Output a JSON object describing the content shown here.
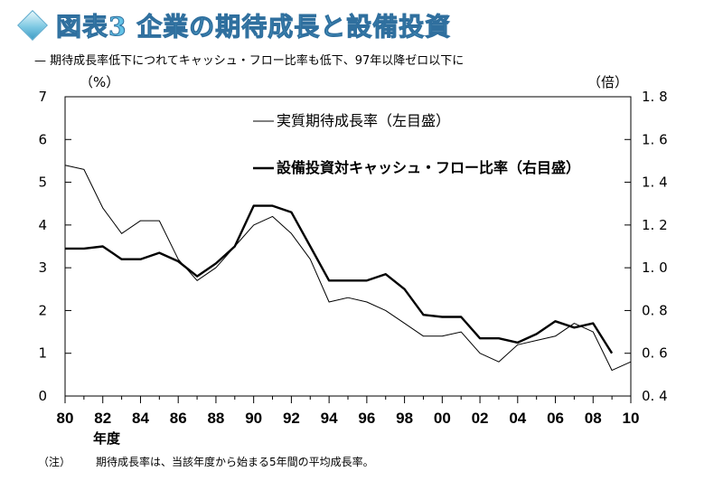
{
  "page": {
    "title": "図表3 企業の期待成長と設備投資",
    "subtitle": "—  期待成長率低下につれてキャッシュ・フロー比率も低下、97年以降ゼロ以下に",
    "note_label": "（注）",
    "note_text": "期待成長率は、当該年度から始まる5年間の平均成長率。",
    "icon": "diamond-icon"
  },
  "chart_data": {
    "type": "line",
    "xlabel": "年度",
    "ylabel_left": "（%）",
    "ylabel_right": "（倍）",
    "x_ticks": [
      {
        "value": 1980,
        "label": "80"
      },
      {
        "value": 1982,
        "label": "82"
      },
      {
        "value": 1984,
        "label": "84"
      },
      {
        "value": 1986,
        "label": "86"
      },
      {
        "value": 1988,
        "label": "88"
      },
      {
        "value": 1990,
        "label": "90"
      },
      {
        "value": 1992,
        "label": "92"
      },
      {
        "value": 1994,
        "label": "94"
      },
      {
        "value": 1996,
        "label": "96"
      },
      {
        "value": 1998,
        "label": "98"
      },
      {
        "value": 2000,
        "label": "00"
      },
      {
        "value": 2002,
        "label": "02"
      },
      {
        "value": 2004,
        "label": "04"
      },
      {
        "value": 2006,
        "label": "06"
      },
      {
        "value": 2008,
        "label": "08"
      },
      {
        "value": 2010,
        "label": "10"
      }
    ],
    "xlim": [
      1980,
      2010
    ],
    "y_left": {
      "min": 0,
      "max": 7,
      "ticks": [
        {
          "value": 0,
          "label": "0"
        },
        {
          "value": 1,
          "label": "1"
        },
        {
          "value": 2,
          "label": "2"
        },
        {
          "value": 3,
          "label": "3"
        },
        {
          "value": 4,
          "label": "4"
        },
        {
          "value": 5,
          "label": "5"
        },
        {
          "value": 6,
          "label": "6"
        },
        {
          "value": 7,
          "label": "7"
        }
      ]
    },
    "y_right": {
      "min": 0.4,
      "max": 1.8,
      "ticks": [
        {
          "value": 0.4,
          "label": "0. 4"
        },
        {
          "value": 0.6,
          "label": "0. 6"
        },
        {
          "value": 0.8,
          "label": "0. 8"
        },
        {
          "value": 1.0,
          "label": "1. 0"
        },
        {
          "value": 1.2,
          "label": "1. 2"
        },
        {
          "value": 1.4,
          "label": "1. 4"
        },
        {
          "value": 1.6,
          "label": "1. 6"
        },
        {
          "value": 1.8,
          "label": "1. 8"
        }
      ]
    },
    "grid": false,
    "legend_position": "top-center",
    "series": [
      {
        "name": "実質期待成長率（左目盛）",
        "axis": "left",
        "stroke": "thin",
        "color": "#000000",
        "x": [
          1980,
          1981,
          1982,
          1983,
          1984,
          1985,
          1986,
          1987,
          1988,
          1989,
          1990,
          1991,
          1992,
          1993,
          1994,
          1995,
          1996,
          1997,
          1998,
          1999,
          2000,
          2001,
          2002,
          2003,
          2004,
          2005,
          2006,
          2007,
          2008,
          2009,
          2010
        ],
        "values": [
          5.4,
          5.3,
          4.4,
          3.8,
          4.1,
          4.1,
          3.2,
          2.7,
          3.0,
          3.5,
          4.0,
          4.2,
          3.8,
          3.2,
          2.2,
          2.3,
          2.2,
          2.0,
          1.7,
          1.4,
          1.4,
          1.5,
          1.0,
          0.8,
          1.2,
          1.3,
          1.4,
          1.7,
          1.5,
          0.6,
          0.8
        ]
      },
      {
        "name": "設備投資対キャッシュ・フロー比率（右目盛）",
        "axis": "right",
        "stroke": "bold",
        "color": "#000000",
        "x": [
          1980,
          1981,
          1982,
          1983,
          1984,
          1985,
          1986,
          1987,
          1988,
          1989,
          1990,
          1991,
          1992,
          1993,
          1994,
          1995,
          1996,
          1997,
          1998,
          1999,
          2000,
          2001,
          2002,
          2003,
          2004,
          2005,
          2006,
          2007,
          2008,
          2009
        ],
        "values": [
          1.09,
          1.09,
          1.1,
          1.04,
          1.04,
          1.07,
          1.03,
          0.96,
          1.02,
          1.1,
          1.29,
          1.29,
          1.26,
          1.1,
          0.94,
          0.94,
          0.94,
          0.97,
          0.9,
          0.78,
          0.77,
          0.77,
          0.67,
          0.67,
          0.65,
          0.69,
          0.75,
          0.72,
          0.74,
          0.6
        ]
      }
    ]
  }
}
